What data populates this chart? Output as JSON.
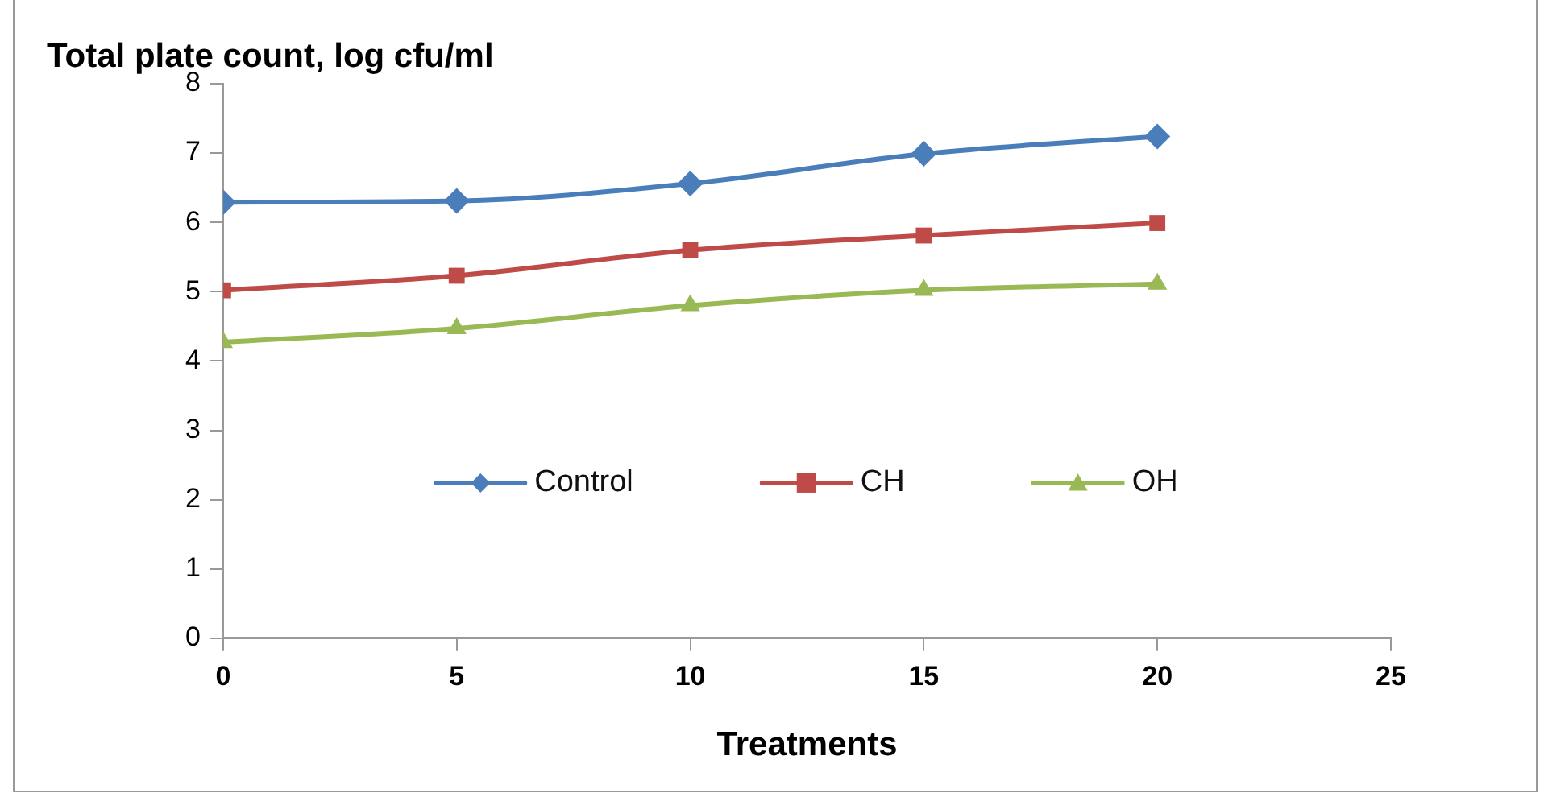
{
  "chart_data": {
    "type": "line",
    "xlabel": "Treatments",
    "ylabel": "Total plate count, log cfu/ml",
    "x": [
      0,
      5,
      10,
      15,
      20
    ],
    "xlim": [
      0,
      25
    ],
    "xticks": [
      0,
      5,
      10,
      15,
      20,
      25
    ],
    "ylim": [
      0,
      8
    ],
    "yticks": [
      0,
      1,
      2,
      3,
      4,
      5,
      6,
      7,
      8
    ],
    "grid": false,
    "legend": "center",
    "series": [
      {
        "name": "Control",
        "color": "#4a7ebb",
        "marker": "diamond",
        "values": [
          6.29,
          6.31,
          6.56,
          6.99,
          7.24
        ]
      },
      {
        "name": "CH",
        "color": "#be4b48",
        "marker": "square",
        "values": [
          5.02,
          5.23,
          5.6,
          5.81,
          5.99
        ]
      },
      {
        "name": "OH",
        "color": "#98b954",
        "marker": "triangle",
        "values": [
          4.27,
          4.47,
          4.8,
          5.02,
          5.11
        ]
      }
    ]
  }
}
